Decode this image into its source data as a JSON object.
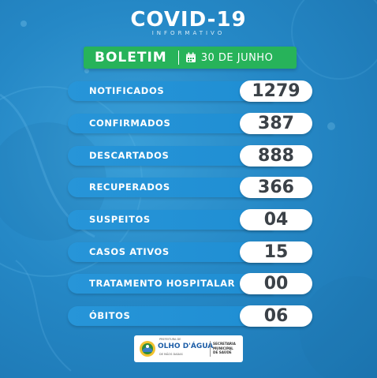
{
  "header": {
    "title": "COVID-19",
    "subtitle": "INFORMATIVO"
  },
  "boletim": {
    "label": "BOLETIM",
    "date": "30 DE JUNHO",
    "icon": "calendar-icon"
  },
  "stats": [
    {
      "label": "NOTIFICADOS",
      "value": "1279"
    },
    {
      "label": "CONFIRMADOS",
      "value": "387"
    },
    {
      "label": "DESCARTADOS",
      "value": "888"
    },
    {
      "label": "RECUPERADOS",
      "value": "366"
    },
    {
      "label": "SUSPEITOS",
      "value": "04"
    },
    {
      "label": "CASOS ATIVOS",
      "value": "15"
    },
    {
      "label": "TRATAMENTO HOSPITALAR",
      "value": "00"
    },
    {
      "label": "ÓBITOS",
      "value": "06"
    }
  ],
  "footer": {
    "city_prefix": "PREFEITURA DE",
    "city": "OLHO D'ÁGUA",
    "city_tag": "DE MÃOS DADAS",
    "dept_line1": "SECRETARIA",
    "dept_line2": "MUNICIPAL",
    "dept_line3": "DE SAÚDE"
  },
  "colors": {
    "background": "#2588c6",
    "row_bar": "#1f8ed3",
    "boletim_green": "#27b35a",
    "value_text": "#3b4147",
    "city_blue": "#1f5fa8"
  }
}
